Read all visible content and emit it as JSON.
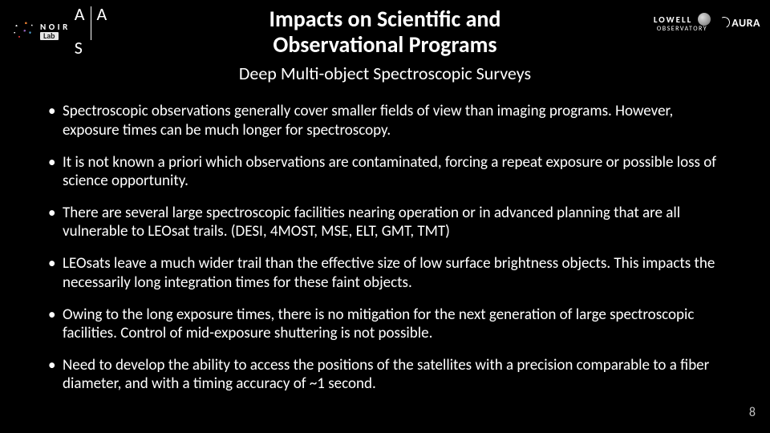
{
  "colors": {
    "background": "#000000",
    "text": "#ffffff",
    "page_num": "#bfbfbf"
  },
  "logos": {
    "left": [
      {
        "name": "noirlab",
        "text_top": "N O I R",
        "text_bottom": "Lab"
      },
      {
        "name": "aas",
        "letters": [
          "A",
          "A",
          "S"
        ]
      }
    ],
    "right": [
      {
        "name": "lowell",
        "top": "LOWELL",
        "bottom": "OBSERVATORY"
      },
      {
        "name": "aura",
        "text": "AURA"
      }
    ]
  },
  "title": {
    "line1": "Impacts on Scientific and",
    "line2": "Observational Programs",
    "fontsize": 28,
    "weight": 700
  },
  "subtitle": {
    "text": "Deep Multi-object Spectroscopic Surveys",
    "fontsize": 22
  },
  "bullets": {
    "fontsize": 19,
    "items": [
      "Spectroscopic observations generally cover smaller fields of view than imaging programs. However, exposure times can be much longer for spectroscopy.",
      "It is not known a priori which observations are contaminated, forcing a repeat exposure or possible loss of science opportunity.",
      "There are several large spectroscopic facilities nearing operation or in advanced planning that are all vulnerable to LEOsat trails. (DESI, 4MOST, MSE, ELT, GMT, TMT)",
      "LEOsats leave a much wider trail than the effective size of low surface brightness objects. This impacts the necessarily long integration times for these faint objects.",
      "Owing to the long exposure times, there is no mitigation for the next generation of large spectroscopic facilities. Control of mid-exposure shuttering is not possible.",
      "Need to develop the ability to access the positions of the satellites with a precision comparable to a fiber diameter, and with a timing accuracy of ~1 second."
    ]
  },
  "page_number": "8"
}
